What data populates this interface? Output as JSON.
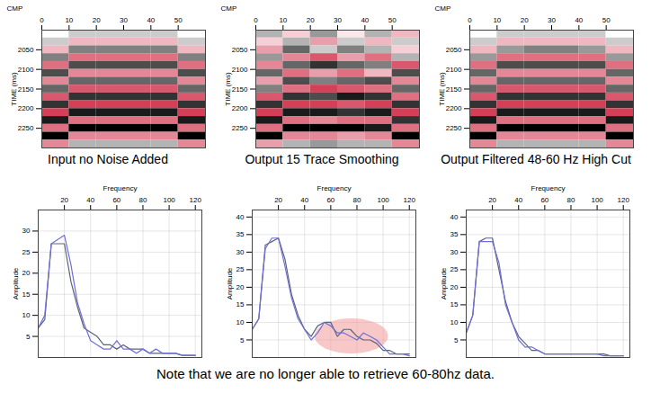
{
  "chart_data": [
    {
      "type": "heatmap",
      "title": "Input no Noise Added",
      "x_label": "CMP",
      "y_label": "TIME (ms)",
      "xlim": [
        0,
        60
      ],
      "xticks": [
        0,
        10,
        20,
        30,
        40,
        50
      ],
      "ylim": [
        2000,
        2300
      ],
      "yticks": [
        2050,
        2100,
        2150,
        2200,
        2250
      ],
      "x_bins": [
        0,
        10,
        20,
        30,
        40,
        50,
        60
      ],
      "y_bins": [
        2000,
        2020,
        2040,
        2060,
        2080,
        2100,
        2120,
        2140,
        2160,
        2180,
        2200,
        2220,
        2240,
        2260,
        2280,
        2300
      ],
      "zlim": [
        -1,
        1
      ],
      "colors": [
        "#c8102e",
        "#ffffff",
        "#000000"
      ],
      "cells": [
        [
          0,
          0.2,
          0.2,
          0.2,
          0.2,
          0
        ],
        [
          0.2,
          -0.3,
          -0.3,
          -0.3,
          -0.3,
          0.2
        ],
        [
          -0.3,
          0.5,
          0.5,
          0.5,
          0.5,
          -0.3
        ],
        [
          0.5,
          -0.6,
          -0.6,
          -0.6,
          -0.6,
          0.5
        ],
        [
          -0.6,
          0.7,
          0.7,
          0.7,
          0.7,
          -0.6
        ],
        [
          0.7,
          -0.5,
          -0.5,
          -0.5,
          -0.5,
          0.7
        ],
        [
          -0.5,
          0.6,
          0.6,
          0.6,
          0.6,
          -0.5
        ],
        [
          0.6,
          -0.7,
          -0.7,
          -0.7,
          -0.7,
          0.6
        ],
        [
          -0.7,
          0.8,
          0.8,
          0.8,
          0.8,
          -0.7
        ],
        [
          0.8,
          -0.8,
          -0.8,
          -0.8,
          -0.8,
          0.8
        ],
        [
          -0.8,
          0.9,
          0.9,
          0.9,
          0.9,
          -0.8
        ],
        [
          0.9,
          -0.6,
          -0.6,
          -0.6,
          -0.6,
          0.9
        ],
        [
          -0.6,
          1,
          1,
          1,
          1,
          -0.6
        ],
        [
          1,
          -0.5,
          -0.5,
          -0.5,
          -0.5,
          1
        ],
        [
          -0.5,
          0.3,
          0.3,
          0.3,
          0.3,
          -0.5
        ]
      ]
    },
    {
      "type": "heatmap",
      "title": "Output  15 Trace Smoothing",
      "x_label": "CMP",
      "y_label": "TIME (ms)",
      "xlim": [
        0,
        60
      ],
      "xticks": [
        0,
        10,
        20,
        30,
        40,
        50
      ],
      "ylim": [
        2000,
        2300
      ],
      "yticks": [
        2050,
        2100,
        2150,
        2200,
        2250
      ],
      "x_bins": [
        0,
        10,
        20,
        30,
        40,
        50,
        60
      ],
      "y_bins": [
        2000,
        2020,
        2040,
        2060,
        2080,
        2100,
        2120,
        2140,
        2160,
        2180,
        2200,
        2220,
        2240,
        2260,
        2280,
        2300
      ],
      "zlim": [
        -1,
        1
      ],
      "colors": [
        "#c8102e",
        "#ffffff",
        "#000000"
      ],
      "cells": [
        [
          0.3,
          -0.2,
          0.4,
          -0.1,
          0.3,
          -0.3
        ],
        [
          -0.2,
          0.3,
          -0.4,
          0.2,
          -0.3,
          0.2
        ],
        [
          -0.4,
          0.6,
          0.2,
          0.5,
          0.3,
          -0.2
        ],
        [
          0.4,
          -0.5,
          -0.7,
          -0.4,
          -0.6,
          0.3
        ],
        [
          -0.5,
          0.6,
          0.8,
          0.6,
          0.5,
          -0.7
        ],
        [
          0.6,
          -0.6,
          -0.4,
          -0.6,
          -0.3,
          0.7
        ],
        [
          -0.4,
          0.7,
          0.5,
          0.6,
          0.7,
          -0.5
        ],
        [
          0.5,
          -0.6,
          -0.8,
          -0.7,
          -0.6,
          0.6
        ],
        [
          -0.7,
          0.8,
          0.7,
          0.9,
          0.8,
          -0.6
        ],
        [
          0.8,
          -0.8,
          -0.8,
          -0.7,
          -0.8,
          0.8
        ],
        [
          -0.8,
          0.9,
          0.9,
          0.8,
          0.9,
          -0.8
        ],
        [
          0.9,
          -0.6,
          -0.5,
          -0.6,
          -0.6,
          0.8
        ],
        [
          -0.6,
          1,
          1,
          1,
          0.9,
          -0.6
        ],
        [
          1,
          -0.5,
          -0.5,
          -0.4,
          -0.5,
          1
        ],
        [
          -0.4,
          0.3,
          0.4,
          0.3,
          0.3,
          -0.5
        ]
      ]
    },
    {
      "type": "heatmap",
      "title": "Output  Filtered 48-60 Hz High Cut",
      "x_label": "CMP",
      "y_label": "TIME (ms)",
      "xlim": [
        0,
        60
      ],
      "xticks": [
        0,
        10,
        20,
        30,
        40,
        50
      ],
      "ylim": [
        2000,
        2300
      ],
      "yticks": [
        2050,
        2100,
        2150,
        2200,
        2250
      ],
      "x_bins": [
        0,
        10,
        20,
        30,
        40,
        50,
        60
      ],
      "y_bins": [
        2000,
        2020,
        2040,
        2060,
        2080,
        2100,
        2120,
        2140,
        2160,
        2180,
        2200,
        2220,
        2240,
        2260,
        2280,
        2300
      ],
      "zlim": [
        -1,
        1
      ],
      "colors": [
        "#c8102e",
        "#ffffff",
        "#000000"
      ],
      "cells": [
        [
          0,
          0.2,
          0.2,
          0.2,
          0.2,
          0
        ],
        [
          0.2,
          -0.3,
          -0.3,
          -0.3,
          -0.3,
          0.2
        ],
        [
          -0.3,
          0.4,
          0.5,
          0.5,
          0.4,
          -0.3
        ],
        [
          0.4,
          -0.6,
          -0.6,
          -0.6,
          -0.6,
          0.4
        ],
        [
          -0.6,
          0.7,
          0.7,
          0.7,
          0.7,
          -0.6
        ],
        [
          0.6,
          -0.5,
          -0.5,
          -0.5,
          -0.5,
          0.6
        ],
        [
          -0.5,
          0.6,
          0.6,
          0.6,
          0.6,
          -0.5
        ],
        [
          0.6,
          -0.7,
          -0.7,
          -0.7,
          -0.7,
          0.6
        ],
        [
          -0.7,
          0.8,
          0.8,
          0.8,
          0.8,
          -0.7
        ],
        [
          0.8,
          -0.8,
          -0.8,
          -0.8,
          -0.8,
          0.8
        ],
        [
          -0.8,
          0.9,
          0.9,
          0.9,
          0.9,
          -0.8
        ],
        [
          0.9,
          -0.6,
          -0.6,
          -0.6,
          -0.6,
          0.9
        ],
        [
          -0.6,
          1,
          1,
          1,
          1,
          -0.6
        ],
        [
          1,
          -0.5,
          -0.5,
          -0.5,
          -0.5,
          1
        ],
        [
          -0.5,
          0.3,
          0.3,
          0.3,
          0.3,
          -0.5
        ]
      ]
    },
    {
      "type": "line",
      "x_label": "Frequency",
      "y_label": "Amplitude",
      "grid": true,
      "xlim": [
        0,
        125
      ],
      "xticks": [
        20,
        40,
        60,
        80,
        100,
        120
      ],
      "ylim": [
        0,
        35
      ],
      "yticks": [
        5,
        10,
        15,
        20,
        25,
        30
      ],
      "x": [
        0,
        5,
        10,
        15,
        20,
        25,
        30,
        35,
        40,
        45,
        50,
        55,
        60,
        65,
        70,
        75,
        80,
        85,
        90,
        95,
        100,
        105,
        110,
        115,
        120
      ],
      "series": [
        {
          "color": "#5a6478",
          "values": [
            7,
            9,
            27,
            27,
            27,
            18,
            12,
            7,
            6,
            5,
            3,
            3,
            2,
            3,
            2,
            2,
            2,
            1,
            1,
            1,
            1,
            1,
            0.5,
            0.5,
            0.5
          ]
        },
        {
          "color": "#6f6fd8",
          "values": [
            7,
            10,
            27,
            28,
            29,
            22,
            13,
            8,
            4,
            3,
            2,
            2,
            4,
            2,
            2,
            1,
            2,
            1,
            2,
            1,
            1,
            1,
            0.5,
            0.5,
            0.5
          ]
        }
      ]
    },
    {
      "type": "line",
      "x_label": "Frequency",
      "y_label": "Amplitude",
      "grid": true,
      "xlim": [
        0,
        125
      ],
      "xticks": [
        20,
        40,
        60,
        80,
        100,
        120
      ],
      "ylim": [
        0,
        42
      ],
      "yticks": [
        5,
        10,
        15,
        20,
        25,
        30,
        35,
        40
      ],
      "x": [
        0,
        5,
        10,
        15,
        20,
        25,
        30,
        35,
        40,
        45,
        50,
        55,
        60,
        65,
        70,
        75,
        80,
        85,
        90,
        95,
        100,
        105,
        110,
        115,
        120
      ],
      "highlight": {
        "x": [
          48,
          104
        ],
        "y": [
          1,
          11
        ]
      },
      "series": [
        {
          "color": "#5a6478",
          "values": [
            8,
            11,
            32,
            33,
            34,
            28,
            18,
            12,
            8,
            6,
            9,
            10,
            10,
            6,
            8,
            8,
            6,
            5,
            5,
            4,
            2,
            2,
            1,
            1,
            1
          ]
        },
        {
          "color": "#6f6fd8",
          "values": [
            8,
            11,
            31,
            34,
            34,
            26,
            17,
            11,
            8,
            5,
            7,
            10,
            9,
            7,
            7,
            6,
            5,
            7,
            6,
            5,
            3,
            1,
            1,
            1,
            0.5
          ]
        }
      ]
    },
    {
      "type": "line",
      "x_label": "Frequency",
      "y_label": "Amplitude",
      "grid": true,
      "xlim": [
        0,
        125
      ],
      "xticks": [
        20,
        40,
        60,
        80,
        100,
        120
      ],
      "ylim": [
        0,
        42
      ],
      "yticks": [
        5,
        10,
        15,
        20,
        25,
        30,
        35,
        40
      ],
      "x": [
        0,
        5,
        10,
        15,
        20,
        25,
        30,
        35,
        40,
        45,
        50,
        55,
        60,
        65,
        70,
        75,
        80,
        85,
        90,
        95,
        100,
        105,
        110,
        115,
        120
      ],
      "series": [
        {
          "color": "#5a6478",
          "values": [
            7,
            12,
            33,
            34,
            34,
            25,
            16,
            10,
            6,
            4,
            2,
            2,
            1,
            1,
            1,
            1,
            1,
            1,
            1,
            1,
            1,
            1,
            0.5,
            0.5,
            0.5
          ]
        },
        {
          "color": "#6f6fd8",
          "values": [
            7,
            12,
            33,
            33,
            33,
            27,
            15,
            10,
            5,
            3,
            3,
            2,
            1,
            1,
            1,
            1,
            1,
            1,
            1,
            1,
            1,
            0.5,
            0.5,
            0.5,
            0.5
          ]
        }
      ]
    }
  ],
  "caption": "Note that we are no longer able to retrieve 60-80hz data."
}
